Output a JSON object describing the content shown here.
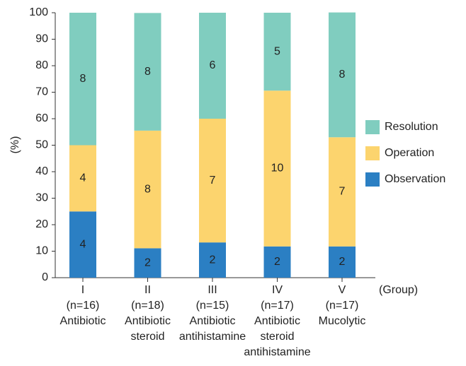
{
  "chart_data": {
    "type": "stacked_bar",
    "y_label": "(%)",
    "x_label": "(Group)",
    "categories": [
      [
        "I",
        "(n=16)",
        "Antibiotic"
      ],
      [
        "II",
        "(n=18)",
        "Antibiotic",
        "steroid"
      ],
      [
        "III",
        "(n=15)",
        "Antibiotic",
        "antihistamine"
      ],
      [
        "IV",
        "(n=17)",
        "Antibiotic",
        "steroid",
        "antihistamine"
      ],
      [
        "V",
        "(n=17)",
        "Mucolytic"
      ]
    ],
    "series": [
      {
        "name": "Observation",
        "color": "#2b7fc3",
        "values": [
          25,
          11.1,
          13.3,
          11.8,
          11.8
        ],
        "counts": [
          4,
          2,
          2,
          2,
          2
        ]
      },
      {
        "name": "Operation",
        "color": "#fcd46e",
        "values": [
          25,
          44.4,
          46.7,
          58.8,
          41.2
        ],
        "counts": [
          4,
          8,
          7,
          10,
          7
        ]
      },
      {
        "name": "Resolution",
        "color": "#80cdbf",
        "values": [
          50,
          44.4,
          40,
          29.4,
          47.1
        ],
        "counts": [
          8,
          8,
          6,
          5,
          8
        ]
      }
    ],
    "ylim": [
      0,
      100
    ],
    "yticks": [
      0,
      10,
      20,
      30,
      40,
      50,
      60,
      70,
      80,
      90,
      100
    ],
    "legend": "right"
  }
}
